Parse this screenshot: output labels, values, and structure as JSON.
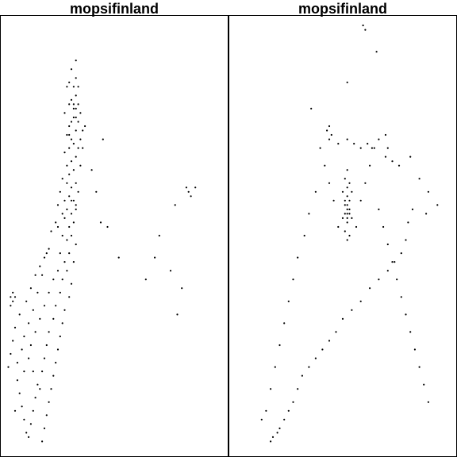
{
  "chart_data": [
    {
      "type": "scatter",
      "title": "mopsifinland",
      "marker_color": "#000000",
      "grid": false,
      "legend": "none",
      "xlim": [
        0,
        100
      ],
      "ylim": [
        0,
        100
      ],
      "points": [
        [
          33,
          90
        ],
        [
          31,
          88
        ],
        [
          30,
          85
        ],
        [
          29,
          84
        ],
        [
          32,
          84
        ],
        [
          33,
          82
        ],
        [
          31,
          81
        ],
        [
          34,
          80
        ],
        [
          30,
          80
        ],
        [
          33,
          79
        ],
        [
          28,
          78
        ],
        [
          35,
          78
        ],
        [
          32,
          77
        ],
        [
          34,
          76
        ],
        [
          30,
          75
        ],
        [
          33,
          74
        ],
        [
          36,
          74
        ],
        [
          29,
          73
        ],
        [
          31,
          72
        ],
        [
          35,
          72
        ],
        [
          32,
          71
        ],
        [
          30,
          70
        ],
        [
          34,
          70
        ],
        [
          28,
          69
        ],
        [
          33,
          68
        ],
        [
          31,
          67
        ],
        [
          29,
          66
        ],
        [
          35,
          66
        ],
        [
          32,
          65
        ],
        [
          30,
          64
        ],
        [
          27,
          63
        ],
        [
          33,
          62
        ],
        [
          31,
          61
        ],
        [
          26,
          60
        ],
        [
          34,
          60
        ],
        [
          30,
          59
        ],
        [
          32,
          58
        ],
        [
          25,
          57
        ],
        [
          29,
          56
        ],
        [
          33,
          56
        ],
        [
          31,
          55
        ],
        [
          28,
          54
        ],
        [
          24,
          53
        ],
        [
          32,
          53
        ],
        [
          30,
          52
        ],
        [
          22,
          51
        ],
        [
          27,
          50
        ],
        [
          31,
          50
        ],
        [
          29,
          49
        ],
        [
          33,
          48
        ],
        [
          21,
          47
        ],
        [
          26,
          46
        ],
        [
          30,
          46
        ],
        [
          19,
          45
        ],
        [
          28,
          44
        ],
        [
          32,
          44
        ],
        [
          17,
          43
        ],
        [
          25,
          42
        ],
        [
          29,
          42
        ],
        [
          15,
          41
        ],
        [
          23,
          40
        ],
        [
          27,
          40
        ],
        [
          31,
          39
        ],
        [
          13,
          38
        ],
        [
          21,
          37
        ],
        [
          26,
          37
        ],
        [
          30,
          36
        ],
        [
          11,
          35
        ],
        [
          19,
          34
        ],
        [
          24,
          34
        ],
        [
          28,
          33
        ],
        [
          8,
          32
        ],
        [
          17,
          31
        ],
        [
          23,
          31
        ],
        [
          27,
          30
        ],
        [
          6,
          29
        ],
        [
          15,
          28
        ],
        [
          21,
          28
        ],
        [
          26,
          27
        ],
        [
          5,
          26
        ],
        [
          13,
          25
        ],
        [
          20,
          25
        ],
        [
          25,
          24
        ],
        [
          4,
          23
        ],
        [
          12,
          22
        ],
        [
          19,
          22
        ],
        [
          24,
          21
        ],
        [
          3,
          20
        ],
        [
          10,
          19
        ],
        [
          18,
          19
        ],
        [
          23,
          18
        ],
        [
          7,
          17
        ],
        [
          16,
          16
        ],
        [
          22,
          15
        ],
        [
          8,
          14
        ],
        [
          15,
          13
        ],
        [
          21,
          12
        ],
        [
          9,
          11
        ],
        [
          14,
          10
        ],
        [
          20,
          9
        ],
        [
          10,
          8
        ],
        [
          13,
          7
        ],
        [
          19,
          6
        ],
        [
          11,
          5
        ],
        [
          12,
          4
        ],
        [
          18,
          3
        ],
        [
          33,
          86
        ],
        [
          34,
          84
        ],
        [
          32,
          80
        ],
        [
          32,
          79
        ],
        [
          33,
          77
        ],
        [
          31,
          76
        ],
        [
          30,
          73
        ],
        [
          37,
          75
        ],
        [
          36,
          70
        ],
        [
          29,
          62
        ],
        [
          28,
          58
        ],
        [
          31,
          58
        ],
        [
          33,
          57
        ],
        [
          27,
          55
        ],
        [
          25,
          52
        ],
        [
          20,
          46
        ],
        [
          18,
          41
        ],
        [
          16,
          37
        ],
        [
          14,
          33
        ],
        [
          12,
          30
        ],
        [
          10,
          27
        ],
        [
          9,
          24
        ],
        [
          7,
          21
        ],
        [
          14,
          19
        ],
        [
          17,
          15
        ],
        [
          6,
          10
        ],
        [
          5,
          35
        ],
        [
          4,
          36
        ],
        [
          6,
          36
        ],
        [
          5,
          37
        ],
        [
          4,
          34
        ],
        [
          84,
          59
        ],
        [
          83,
          60
        ],
        [
          86,
          61
        ],
        [
          82,
          61
        ],
        [
          77,
          57
        ],
        [
          70,
          50
        ],
        [
          68,
          45
        ],
        [
          75,
          42
        ],
        [
          80,
          38
        ],
        [
          78,
          32
        ],
        [
          64,
          40
        ],
        [
          52,
          45
        ],
        [
          47,
          52
        ],
        [
          44,
          53
        ],
        [
          42,
          60
        ],
        [
          40,
          65
        ],
        [
          45,
          72
        ]
      ]
    },
    {
      "type": "scatter",
      "title": "mopsifinland",
      "marker_color": "#000000",
      "grid": false,
      "legend": "none",
      "xlim": [
        0,
        100
      ],
      "ylim": [
        0,
        100
      ],
      "points": [
        [
          59,
          98
        ],
        [
          60,
          97
        ],
        [
          65,
          92
        ],
        [
          52,
          85
        ],
        [
          36,
          79
        ],
        [
          44,
          75
        ],
        [
          43,
          74
        ],
        [
          45,
          73
        ],
        [
          44,
          72
        ],
        [
          48,
          71
        ],
        [
          52,
          72
        ],
        [
          55,
          71
        ],
        [
          58,
          70
        ],
        [
          61,
          71
        ],
        [
          63,
          70
        ],
        [
          66,
          72
        ],
        [
          69,
          73
        ],
        [
          70,
          70
        ],
        [
          69,
          68
        ],
        [
          72,
          67
        ],
        [
          75,
          66
        ],
        [
          80,
          68
        ],
        [
          84,
          63
        ],
        [
          88,
          60
        ],
        [
          92,
          57
        ],
        [
          87,
          55
        ],
        [
          81,
          56
        ],
        [
          79,
          53
        ],
        [
          78,
          49
        ],
        [
          76,
          46
        ],
        [
          73,
          44
        ],
        [
          70,
          42
        ],
        [
          66,
          40
        ],
        [
          62,
          38
        ],
        [
          58,
          35
        ],
        [
          54,
          33
        ],
        [
          50,
          31
        ],
        [
          47,
          28
        ],
        [
          44,
          26
        ],
        [
          41,
          24
        ],
        [
          38,
          22
        ],
        [
          35,
          20
        ],
        [
          32,
          18
        ],
        [
          30,
          15
        ],
        [
          28,
          12
        ],
        [
          26,
          10
        ],
        [
          24,
          8
        ],
        [
          22,
          6
        ],
        [
          21,
          5
        ],
        [
          19,
          4
        ],
        [
          18,
          3
        ],
        [
          52,
          65
        ],
        [
          51,
          63
        ],
        [
          53,
          62
        ],
        [
          50,
          60
        ],
        [
          54,
          60
        ],
        [
          52,
          59
        ],
        [
          51,
          57
        ],
        [
          53,
          56
        ],
        [
          52,
          55
        ],
        [
          50,
          54
        ],
        [
          54,
          54
        ],
        [
          52,
          53
        ],
        [
          51,
          51
        ],
        [
          53,
          50
        ],
        [
          52,
          49
        ],
        [
          48,
          52
        ],
        [
          56,
          52
        ],
        [
          46,
          58
        ],
        [
          58,
          58
        ],
        [
          44,
          62
        ],
        [
          60,
          62
        ],
        [
          42,
          66
        ],
        [
          62,
          66
        ],
        [
          40,
          70
        ],
        [
          64,
          70
        ],
        [
          38,
          60
        ],
        [
          66,
          56
        ],
        [
          35,
          55
        ],
        [
          68,
          52
        ],
        [
          33,
          50
        ],
        [
          70,
          48
        ],
        [
          30,
          45
        ],
        [
          72,
          44
        ],
        [
          28,
          40
        ],
        [
          74,
          40
        ],
        [
          26,
          35
        ],
        [
          76,
          36
        ],
        [
          24,
          30
        ],
        [
          78,
          32
        ],
        [
          22,
          25
        ],
        [
          80,
          28
        ],
        [
          20,
          20
        ],
        [
          82,
          24
        ],
        [
          18,
          15
        ],
        [
          84,
          20
        ],
        [
          16,
          10
        ],
        [
          86,
          16
        ],
        [
          14,
          8
        ],
        [
          88,
          12
        ],
        [
          52,
          61
        ],
        [
          51,
          58
        ],
        [
          53,
          58
        ],
        [
          52,
          57
        ],
        [
          52,
          56
        ],
        [
          53,
          55
        ],
        [
          51,
          55
        ],
        [
          52,
          54
        ]
      ]
    }
  ]
}
